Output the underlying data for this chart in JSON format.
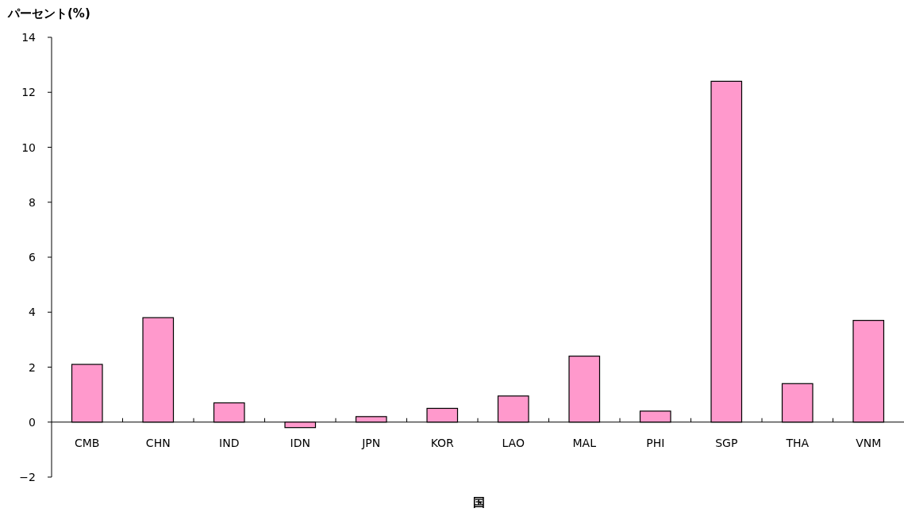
{
  "chart_data": {
    "type": "bar",
    "xlabel": "国",
    "ylabel": "パーセント(%)",
    "categories": [
      "CMB",
      "CHN",
      "IND",
      "IDN",
      "JPN",
      "KOR",
      "LAO",
      "MAL",
      "PHI",
      "SGP",
      "THA",
      "VNM"
    ],
    "values": [
      2.1,
      3.8,
      0.7,
      -0.2,
      0.2,
      0.5,
      0.95,
      2.4,
      0.4,
      12.4,
      1.4,
      3.7
    ],
    "color": "#ff99cc",
    "ylim": [
      -2,
      14
    ],
    "yticks": [
      -2,
      0,
      2,
      4,
      6,
      8,
      10,
      12,
      14
    ],
    "grid": false,
    "legend": false
  }
}
